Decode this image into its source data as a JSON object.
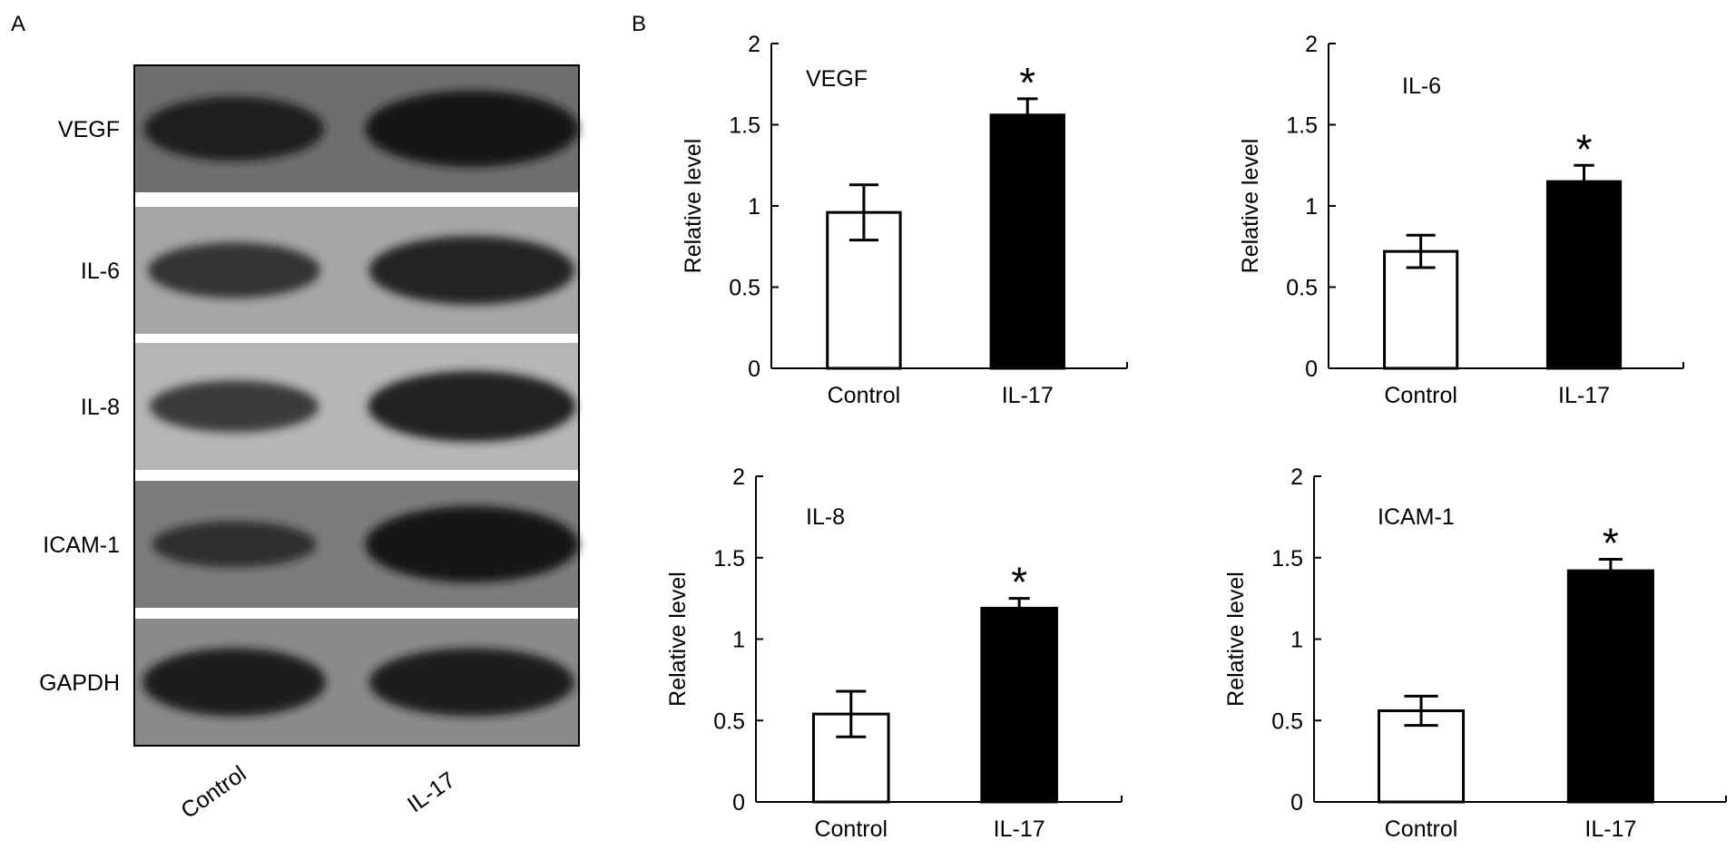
{
  "panel_labels": {
    "a": "A",
    "b": "B"
  },
  "blot": {
    "rows": [
      {
        "label": "VEGF",
        "background": "#6e6e6e",
        "band_color": "#141414",
        "intensity": [
          0.78,
          1.0
        ]
      },
      {
        "label": "IL-6",
        "background": "#a6a6a6",
        "band_color": "#1c1c1c",
        "intensity": [
          0.62,
          0.86
        ]
      },
      {
        "label": "IL-8",
        "background": "#b6b6b6",
        "band_color": "#1c1c1c",
        "intensity": [
          0.55,
          0.9
        ]
      },
      {
        "label": "ICAM-1",
        "background": "#7c7c7c",
        "band_color": "#161616",
        "intensity": [
          0.45,
          1.0
        ]
      },
      {
        "label": "GAPDH",
        "background": "#8a8a8a",
        "band_color": "#141414",
        "intensity": [
          0.85,
          0.85
        ]
      }
    ],
    "lanes": [
      "Control",
      "IL-17"
    ]
  },
  "chart_data": [
    {
      "type": "bar",
      "title": "VEGF",
      "categories": [
        "Control",
        "IL-17"
      ],
      "values": [
        0.96,
        1.56
      ],
      "errors": [
        0.17,
        0.1
      ],
      "significance": [
        "",
        "*"
      ],
      "ylabel": "Relative level",
      "ylim": [
        0,
        2
      ],
      "yticks": [
        "0",
        "0.5",
        "1",
        "1.5",
        "2"
      ],
      "bar_fills": [
        "#ffffff",
        "#000000"
      ]
    },
    {
      "type": "bar",
      "title": "IL-6",
      "categories": [
        "Control",
        "IL-17"
      ],
      "values": [
        0.72,
        1.15
      ],
      "errors": [
        0.1,
        0.1
      ],
      "significance": [
        "",
        "*"
      ],
      "ylabel": "Relative level",
      "ylim": [
        0,
        2
      ],
      "yticks": [
        "0",
        "0.5",
        "1",
        "1.5",
        "2"
      ],
      "bar_fills": [
        "#ffffff",
        "#000000"
      ]
    },
    {
      "type": "bar",
      "title": "IL-8",
      "categories": [
        "Control",
        "IL-17"
      ],
      "values": [
        0.54,
        1.19
      ],
      "errors": [
        0.14,
        0.06
      ],
      "significance": [
        "",
        "*"
      ],
      "ylabel": "Relative level",
      "ylim": [
        0,
        2
      ],
      "yticks": [
        "0",
        "0.5",
        "1",
        "1.5",
        "2"
      ],
      "bar_fills": [
        "#ffffff",
        "#000000"
      ]
    },
    {
      "type": "bar",
      "title": "ICAM-1",
      "categories": [
        "Control",
        "IL-17"
      ],
      "values": [
        0.56,
        1.42
      ],
      "errors": [
        0.09,
        0.07
      ],
      "significance": [
        "",
        "*"
      ],
      "ylabel": "Relative level",
      "ylim": [
        0,
        2
      ],
      "yticks": [
        "0",
        "0.5",
        "1",
        "1.5",
        "2"
      ],
      "bar_fills": [
        "#ffffff",
        "#000000"
      ]
    }
  ]
}
